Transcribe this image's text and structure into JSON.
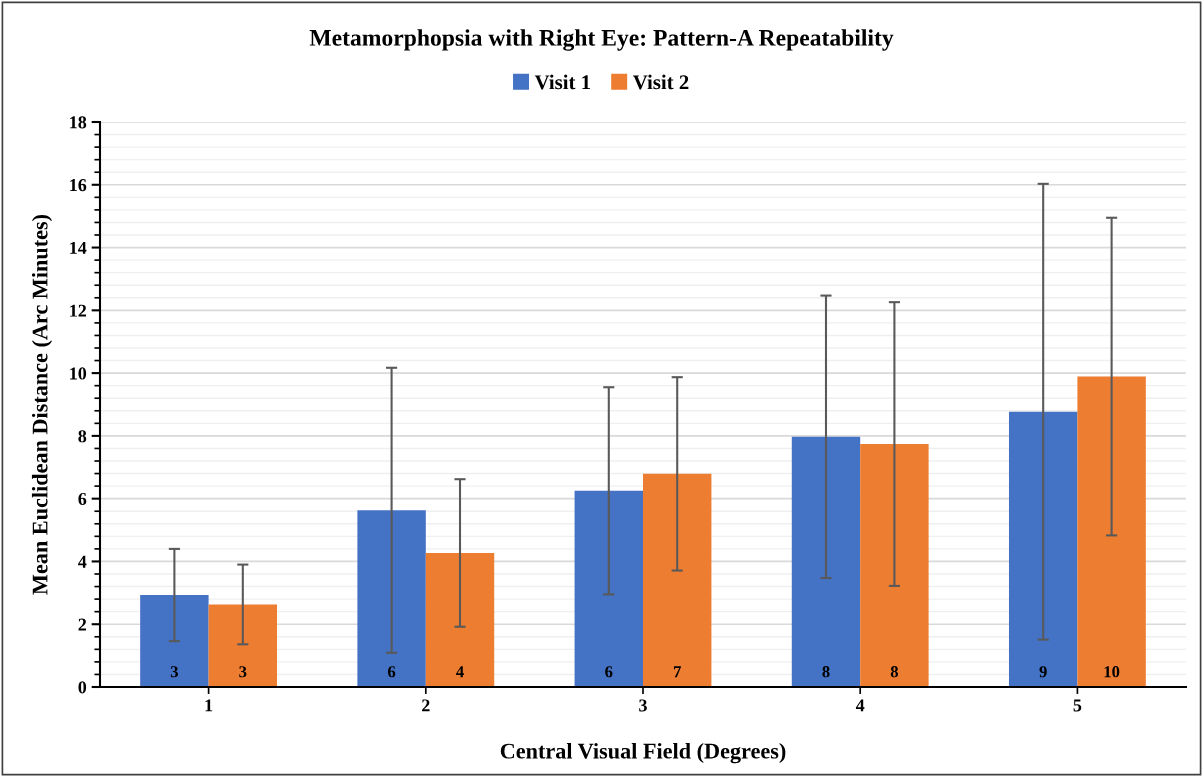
{
  "chart_data": {
    "type": "bar",
    "title": "Metamorphopsia with Right Eye: Pattern-A Repeatability",
    "xlabel": "Central Visual Field (Degrees)",
    "ylabel": "Mean Euclidean Distance (Arc Minutes)",
    "categories": [
      "1",
      "2",
      "3",
      "4",
      "5"
    ],
    "series": [
      {
        "name": "Visit 1",
        "color": "#4472c4",
        "values": [
          2.93,
          5.63,
          6.25,
          7.97,
          8.77
        ],
        "errors": [
          1.47,
          4.54,
          3.3,
          4.5,
          7.26
        ],
        "value_labels": [
          "3",
          "6",
          "6",
          "8",
          "9"
        ]
      },
      {
        "name": "Visit 2",
        "color": "#ed7d31",
        "values": [
          2.63,
          4.27,
          6.79,
          7.74,
          9.89
        ],
        "errors": [
          1.27,
          2.35,
          3.08,
          4.52,
          5.06
        ],
        "value_labels": [
          "3",
          "4",
          "7",
          "8",
          "10"
        ]
      }
    ],
    "ylim": [
      0,
      18
    ],
    "yticks": [
      0,
      2,
      4,
      6,
      8,
      10,
      12,
      14,
      16,
      18
    ],
    "grid": "y",
    "legend": "top"
  }
}
